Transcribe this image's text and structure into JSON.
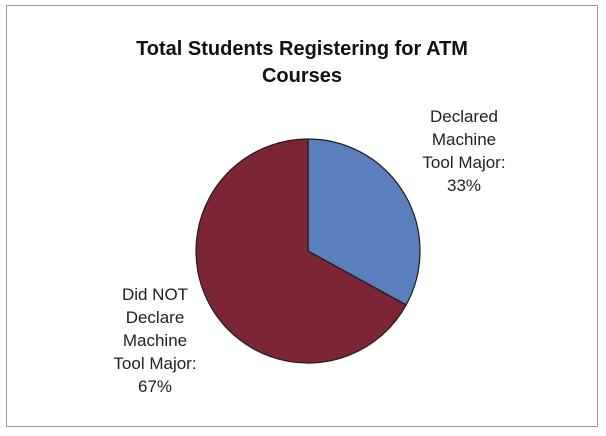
{
  "chart_data": {
    "type": "pie",
    "title": "Total Students Registering for ATM Courses",
    "title_lines": [
      "Total Students Registering for ATM",
      "Courses"
    ],
    "slices": [
      {
        "name": "Declared Machine Tool Major",
        "value": 33,
        "label": "Declared Machine Tool Major: 33%",
        "label_lines": [
          "Declared",
          "Machine",
          "Tool Major:",
          "33%"
        ],
        "color": "#5b7fbd"
      },
      {
        "name": "Did NOT Declare Machine Tool Major",
        "value": 67,
        "label": "Did NOT Declare Machine Tool Major: 67%",
        "label_lines": [
          "Did NOT",
          "Declare",
          "Machine",
          "Tool Major:",
          "67%"
        ],
        "color": "#7c2635"
      }
    ],
    "start_angle_deg": 0,
    "direction": "clockwise",
    "legend": "none"
  }
}
